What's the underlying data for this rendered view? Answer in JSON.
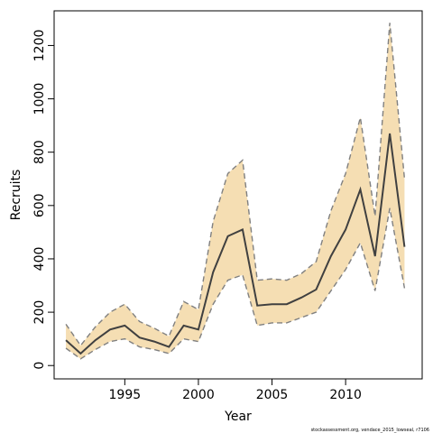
{
  "chart_data": {
    "type": "line",
    "title": "",
    "xlabel": "Year",
    "ylabel": "Recruits",
    "xlim": [
      1990.2,
      2015.2
    ],
    "ylim": [
      -50,
      1330
    ],
    "xticks": [
      1995,
      2000,
      2005,
      2010
    ],
    "yticks": [
      0,
      200,
      400,
      600,
      800,
      1000,
      1200
    ],
    "grid": false,
    "legend": "none",
    "colors": {
      "band": "#f5deb3",
      "line": "#404040",
      "bound_line": "#808080",
      "axis": "#000000"
    },
    "x": [
      1991,
      1992,
      1993,
      1994,
      1995,
      1996,
      1997,
      1998,
      1999,
      2000,
      2001,
      2002,
      2003,
      2004,
      2005,
      2006,
      2007,
      2008,
      2009,
      2010,
      2011,
      2012,
      2013,
      2014
    ],
    "series": [
      {
        "values": [
          95,
          45,
          95,
          135,
          150,
          105,
          90,
          70,
          150,
          135,
          350,
          485,
          510,
          225,
          230,
          230,
          255,
          285,
          410,
          510,
          660,
          410,
          870,
          445
        ]
      },
      {
        "values": [
          155,
          75,
          145,
          200,
          230,
          165,
          140,
          110,
          240,
          210,
          540,
          720,
          770,
          320,
          325,
          320,
          345,
          390,
          580,
          720,
          930,
          560,
          1285,
          700
        ]
      },
      {
        "values": [
          65,
          25,
          60,
          90,
          100,
          70,
          60,
          45,
          100,
          90,
          230,
          320,
          340,
          150,
          160,
          160,
          180,
          200,
          280,
          360,
          460,
          280,
          590,
          290
        ]
      }
    ]
  },
  "footnote": "stockassessment.org, vendace_2015_lowseal, r7106"
}
